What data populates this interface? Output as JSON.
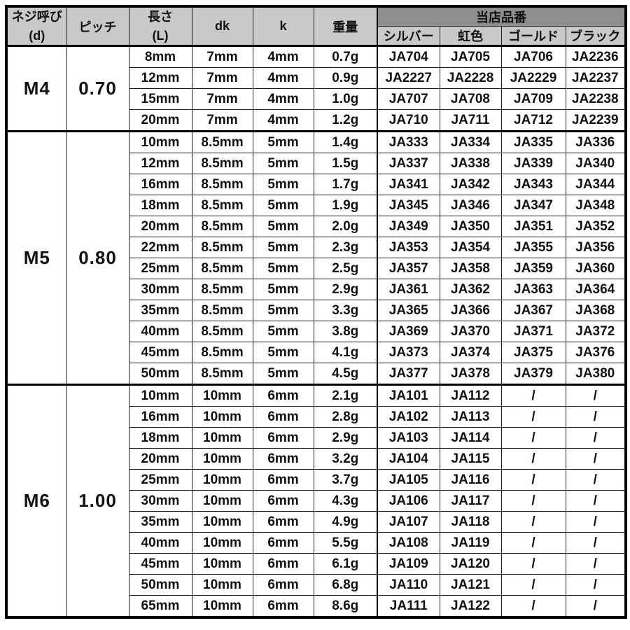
{
  "table": {
    "title": "screw dimensions and shop part numbers",
    "headers": {
      "screw_size": [
        "ネジ呼び",
        "(d)"
      ],
      "pitch": "ピッチ",
      "length": [
        "長さ",
        "(L)"
      ],
      "dk": "dk",
      "k": "k",
      "weight": "重量",
      "part_number_group": "当店品番",
      "silver": "シルバー",
      "rainbow": "虹色",
      "gold": "ゴールド",
      "black": "ブラック"
    },
    "row_columns": [
      "length",
      "dk",
      "k",
      "weight",
      "part_silver",
      "part_rainbow",
      "part_gold",
      "part_black"
    ],
    "sections": [
      {
        "size": "M4",
        "pitch": "0.70",
        "rows": [
          [
            "8mm",
            "7mm",
            "4mm",
            "0.7g",
            "JA704",
            "JA705",
            "JA706",
            "JA2236"
          ],
          [
            "12mm",
            "7mm",
            "4mm",
            "0.9g",
            "JA2227",
            "JA2228",
            "JA2229",
            "JA2237"
          ],
          [
            "15mm",
            "7mm",
            "4mm",
            "1.0g",
            "JA707",
            "JA708",
            "JA709",
            "JA2238"
          ],
          [
            "20mm",
            "7mm",
            "4mm",
            "1.2g",
            "JA710",
            "JA711",
            "JA712",
            "JA2239"
          ]
        ]
      },
      {
        "size": "M5",
        "pitch": "0.80",
        "rows": [
          [
            "10mm",
            "8.5mm",
            "5mm",
            "1.4g",
            "JA333",
            "JA334",
            "JA335",
            "JA336"
          ],
          [
            "12mm",
            "8.5mm",
            "5mm",
            "1.5g",
            "JA337",
            "JA338",
            "JA339",
            "JA340"
          ],
          [
            "16mm",
            "8.5mm",
            "5mm",
            "1.7g",
            "JA341",
            "JA342",
            "JA343",
            "JA344"
          ],
          [
            "18mm",
            "8.5mm",
            "5mm",
            "1.9g",
            "JA345",
            "JA346",
            "JA347",
            "JA348"
          ],
          [
            "20mm",
            "8.5mm",
            "5mm",
            "2.0g",
            "JA349",
            "JA350",
            "JA351",
            "JA352"
          ],
          [
            "22mm",
            "8.5mm",
            "5mm",
            "2.3g",
            "JA353",
            "JA354",
            "JA355",
            "JA356"
          ],
          [
            "25mm",
            "8.5mm",
            "5mm",
            "2.5g",
            "JA357",
            "JA358",
            "JA359",
            "JA360"
          ],
          [
            "30mm",
            "8.5mm",
            "5mm",
            "2.9g",
            "JA361",
            "JA362",
            "JA363",
            "JA364"
          ],
          [
            "35mm",
            "8.5mm",
            "5mm",
            "3.3g",
            "JA365",
            "JA366",
            "JA367",
            "JA368"
          ],
          [
            "40mm",
            "8.5mm",
            "5mm",
            "3.8g",
            "JA369",
            "JA370",
            "JA371",
            "JA372"
          ],
          [
            "45mm",
            "8.5mm",
            "5mm",
            "4.1g",
            "JA373",
            "JA374",
            "JA375",
            "JA376"
          ],
          [
            "50mm",
            "8.5mm",
            "5mm",
            "4.5g",
            "JA377",
            "JA378",
            "JA379",
            "JA380"
          ]
        ]
      },
      {
        "size": "M6",
        "pitch": "1.00",
        "rows": [
          [
            "10mm",
            "10mm",
            "6mm",
            "2.1g",
            "JA101",
            "JA112",
            "/",
            "/"
          ],
          [
            "16mm",
            "10mm",
            "6mm",
            "2.8g",
            "JA102",
            "JA113",
            "/",
            "/"
          ],
          [
            "18mm",
            "10mm",
            "6mm",
            "2.9g",
            "JA103",
            "JA114",
            "/",
            "/"
          ],
          [
            "20mm",
            "10mm",
            "6mm",
            "3.2g",
            "JA104",
            "JA115",
            "/",
            "/"
          ],
          [
            "25mm",
            "10mm",
            "6mm",
            "3.7g",
            "JA105",
            "JA116",
            "/",
            "/"
          ],
          [
            "30mm",
            "10mm",
            "6mm",
            "4.3g",
            "JA106",
            "JA117",
            "/",
            "/"
          ],
          [
            "35mm",
            "10mm",
            "6mm",
            "4.9g",
            "JA107",
            "JA118",
            "/",
            "/"
          ],
          [
            "40mm",
            "10mm",
            "6mm",
            "5.5g",
            "JA108",
            "JA119",
            "/",
            "/"
          ],
          [
            "45mm",
            "10mm",
            "6mm",
            "6.1g",
            "JA109",
            "JA120",
            "/",
            "/"
          ],
          [
            "50mm",
            "10mm",
            "6mm",
            "6.8g",
            "JA110",
            "JA121",
            "/",
            "/"
          ],
          [
            "65mm",
            "10mm",
            "6mm",
            "8.6g",
            "JA111",
            "JA122",
            "/",
            "/"
          ]
        ]
      }
    ]
  },
  "colors": {
    "header_bg": "#c9c9c9",
    "group_header_bg": "#8e8e8e",
    "cell_bg": "#ffffff",
    "grid_line": "#1f1f1f",
    "thick_line": "#000000",
    "text": "#111111"
  }
}
